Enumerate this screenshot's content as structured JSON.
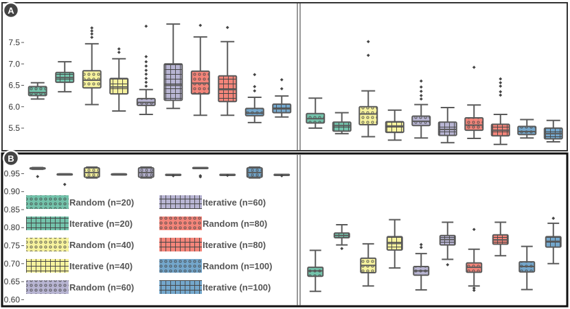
{
  "chart_data": [
    {
      "panel": "A",
      "type": "box",
      "ylim": [
        5.1,
        8.3
      ],
      "yticks": [
        5.5,
        6.0,
        6.5,
        7.0,
        7.5
      ],
      "ytick_labels": [
        "5.5",
        "6.0",
        "6.5",
        "7.0",
        "7.5"
      ],
      "subplots": [
        {
          "name": "left",
          "boxes": [
            {
              "series": "Random (n=20)",
              "whislo": 6.18,
              "q1": 6.26,
              "median": 6.33,
              "q3": 6.47,
              "whishi": 6.56,
              "fliers": []
            },
            {
              "series": "Iterative (n=20)",
              "whislo": 6.35,
              "q1": 6.57,
              "median": 6.68,
              "q3": 6.8,
              "whishi": 7.05,
              "fliers": []
            },
            {
              "series": "Random (n=40)",
              "whislo": 6.05,
              "q1": 6.44,
              "median": 6.62,
              "q3": 6.84,
              "whishi": 7.47,
              "fliers": [
                7.62,
                7.7,
                7.77,
                7.84
              ]
            },
            {
              "series": "Iterative (n=40)",
              "whislo": 5.9,
              "q1": 6.3,
              "median": 6.46,
              "q3": 6.66,
              "whishi": 7.12,
              "fliers": [
                7.27,
                7.35
              ]
            },
            {
              "series": "Random (n=60)",
              "whislo": 5.82,
              "q1": 6.03,
              "median": 6.1,
              "q3": 6.19,
              "whishi": 6.4,
              "fliers": [
                6.48,
                6.57,
                6.66,
                6.76,
                6.85,
                6.95,
                7.05,
                7.17,
                7.88
              ]
            },
            {
              "series": "Iterative (n=60)",
              "whislo": 5.96,
              "q1": 6.15,
              "median": 6.5,
              "q3": 7.0,
              "whishi": 7.93,
              "fliers": []
            },
            {
              "series": "Random (n=80)",
              "whislo": 5.8,
              "q1": 6.3,
              "median": 6.55,
              "q3": 6.83,
              "whishi": 7.63,
              "fliers": [
                7.9
              ]
            },
            {
              "series": "Iterative (n=80)",
              "whislo": 5.8,
              "q1": 6.12,
              "median": 6.4,
              "q3": 6.72,
              "whishi": 7.52,
              "fliers": [
                7.85
              ]
            },
            {
              "series": "Random (n=100)",
              "whislo": 5.63,
              "q1": 5.79,
              "median": 5.85,
              "q3": 5.96,
              "whishi": 6.22,
              "fliers": [
                6.37,
                6.47,
                6.75
              ]
            },
            {
              "series": "Iterative (n=100)",
              "whislo": 5.76,
              "q1": 5.86,
              "median": 5.95,
              "q3": 6.06,
              "whishi": 6.25,
              "fliers": [
                6.42,
                6.63
              ]
            }
          ]
        },
        {
          "name": "right",
          "boxes": [
            {
              "series": "Random (n=20)",
              "whislo": 5.5,
              "q1": 5.62,
              "median": 5.72,
              "q3": 5.84,
              "whishi": 6.2,
              "fliers": []
            },
            {
              "series": "Iterative (n=20)",
              "whislo": 5.37,
              "q1": 5.43,
              "median": 5.56,
              "q3": 5.64,
              "whishi": 5.86,
              "fliers": []
            },
            {
              "series": "Random (n=40)",
              "whislo": 5.3,
              "q1": 5.58,
              "median": 5.83,
              "q3": 6.0,
              "whishi": 6.37,
              "fliers": [
                7.2,
                7.52
              ]
            },
            {
              "series": "Iterative (n=40)",
              "whislo": 5.22,
              "q1": 5.4,
              "median": 5.55,
              "q3": 5.65,
              "whishi": 5.92,
              "fliers": []
            },
            {
              "series": "Random (n=60)",
              "whislo": 5.27,
              "q1": 5.56,
              "median": 5.66,
              "q3": 5.78,
              "whishi": 6.05,
              "fliers": [
                6.18,
                6.26,
                6.36,
                6.46,
                6.6
              ]
            },
            {
              "series": "Iterative (n=60)",
              "whislo": 5.16,
              "q1": 5.33,
              "median": 5.47,
              "q3": 5.64,
              "whishi": 5.98,
              "fliers": []
            },
            {
              "series": "Random (n=80)",
              "whislo": 5.26,
              "q1": 5.45,
              "median": 5.57,
              "q3": 5.74,
              "whishi": 6.04,
              "fliers": [
                6.92
              ]
            },
            {
              "series": "Iterative (n=80)",
              "whislo": 5.12,
              "q1": 5.32,
              "median": 5.45,
              "q3": 5.59,
              "whishi": 5.82,
              "fliers": [
                6.27,
                6.35,
                6.48,
                6.56,
                6.65
              ]
            },
            {
              "series": "Random (n=100)",
              "whislo": 5.27,
              "q1": 5.35,
              "median": 5.42,
              "q3": 5.54,
              "whishi": 5.7,
              "fliers": []
            },
            {
              "series": "Iterative (n=100)",
              "whislo": 5.18,
              "q1": 5.25,
              "median": 5.37,
              "q3": 5.5,
              "whishi": 5.68,
              "fliers": []
            }
          ]
        }
      ]
    },
    {
      "panel": "B",
      "type": "box",
      "ylim": [
        0.595,
        0.985
      ],
      "yticks": [
        0.6,
        0.65,
        0.7,
        0.75,
        0.8,
        0.85,
        0.9,
        0.95
      ],
      "ytick_labels": [
        "0.60",
        "0.65",
        "0.70",
        "0.75",
        "0.80",
        "0.85",
        "0.90",
        "0.95"
      ],
      "subplots": [
        {
          "name": "left",
          "boxes": [
            {
              "series": "Random (n=20)",
              "whislo": 0.962,
              "q1": 0.963,
              "median": 0.964,
              "q3": 0.966,
              "whishi": 0.967,
              "fliers": [
                0.942
              ]
            },
            {
              "series": "Iterative (n=20)",
              "whislo": 0.949,
              "q1": 0.949,
              "median": 0.949,
              "q3": 0.949,
              "whishi": 0.949,
              "fliers": [
                0.92
              ]
            },
            {
              "series": "Random (n=40)",
              "whislo": 0.938,
              "q1": 0.94,
              "median": 0.953,
              "q3": 0.966,
              "whishi": 0.968,
              "fliers": []
            },
            {
              "series": "Iterative (n=40)",
              "whislo": 0.949,
              "q1": 0.949,
              "median": 0.949,
              "q3": 0.949,
              "whishi": 0.949,
              "fliers": []
            },
            {
              "series": "Random (n=60)",
              "whislo": 0.938,
              "q1": 0.94,
              "median": 0.953,
              "q3": 0.966,
              "whishi": 0.968,
              "fliers": []
            },
            {
              "series": "Iterative (n=60)",
              "whislo": 0.948,
              "q1": 0.948,
              "median": 0.948,
              "q3": 0.948,
              "whishi": 0.948,
              "fliers": [
                0.944
              ]
            },
            {
              "series": "Random (n=80)",
              "whislo": 0.966,
              "q1": 0.966,
              "median": 0.966,
              "q3": 0.967,
              "whishi": 0.967,
              "fliers": [
                0.944,
                0.941
              ]
            },
            {
              "series": "Iterative (n=80)",
              "whislo": 0.948,
              "q1": 0.948,
              "median": 0.948,
              "q3": 0.948,
              "whishi": 0.948,
              "fliers": [
                0.945
              ]
            },
            {
              "series": "Random (n=100)",
              "whislo": 0.938,
              "q1": 0.94,
              "median": 0.953,
              "q3": 0.966,
              "whishi": 0.968,
              "fliers": []
            },
            {
              "series": "Iterative (n=100)",
              "whislo": 0.948,
              "q1": 0.948,
              "median": 0.948,
              "q3": 0.948,
              "whishi": 0.948,
              "fliers": [
                0.944
              ]
            }
          ]
        },
        {
          "name": "right",
          "boxes": [
            {
              "series": "Random (n=20)",
              "whislo": 0.623,
              "q1": 0.665,
              "median": 0.68,
              "q3": 0.69,
              "whishi": 0.737,
              "fliers": []
            },
            {
              "series": "Iterative (n=20)",
              "whislo": 0.752,
              "q1": 0.772,
              "median": 0.778,
              "q3": 0.785,
              "whishi": 0.808,
              "fliers": [
                0.742
              ]
            },
            {
              "series": "Random (n=40)",
              "whislo": 0.638,
              "q1": 0.675,
              "median": 0.695,
              "q3": 0.715,
              "whishi": 0.755,
              "fliers": []
            },
            {
              "series": "Iterative (n=40)",
              "whislo": 0.688,
              "q1": 0.738,
              "median": 0.756,
              "q3": 0.775,
              "whishi": 0.822,
              "fliers": []
            },
            {
              "series": "Random (n=60)",
              "whislo": 0.627,
              "q1": 0.668,
              "median": 0.68,
              "q3": 0.692,
              "whishi": 0.728,
              "fliers": [
                0.745,
                0.753
              ]
            },
            {
              "series": "Iterative (n=60)",
              "whislo": 0.712,
              "q1": 0.752,
              "median": 0.767,
              "q3": 0.778,
              "whishi": 0.815,
              "fliers": [
                0.697
              ]
            },
            {
              "series": "Random (n=80)",
              "whislo": 0.638,
              "q1": 0.676,
              "median": 0.69,
              "q3": 0.702,
              "whishi": 0.74,
              "fliers": [
                0.795,
                0.632,
                0.626
              ]
            },
            {
              "series": "Iterative (n=80)",
              "whislo": 0.722,
              "q1": 0.754,
              "median": 0.766,
              "q3": 0.78,
              "whishi": 0.815,
              "fliers": []
            },
            {
              "series": "Random (n=100)",
              "whislo": 0.628,
              "q1": 0.677,
              "median": 0.692,
              "q3": 0.705,
              "whishi": 0.748,
              "fliers": []
            },
            {
              "series": "Iterative (n=100)",
              "whislo": 0.7,
              "q1": 0.746,
              "median": 0.762,
              "q3": 0.775,
              "whishi": 0.812,
              "fliers": [
                0.826
              ]
            }
          ]
        }
      ]
    }
  ],
  "panel_labels": [
    "A",
    "B"
  ],
  "series": [
    {
      "name": "Random (n=20)",
      "color": "#73c3ab",
      "pattern": "dots"
    },
    {
      "name": "Iterative (n=20)",
      "color": "#73c3ab",
      "pattern": "grid"
    },
    {
      "name": "Random (n=40)",
      "color": "#f7f39e",
      "pattern": "dots"
    },
    {
      "name": "Iterative (n=40)",
      "color": "#f7f39e",
      "pattern": "grid"
    },
    {
      "name": "Random (n=60)",
      "color": "#b8b5d3",
      "pattern": "dots"
    },
    {
      "name": "Iterative (n=60)",
      "color": "#b8b5d3",
      "pattern": "grid"
    },
    {
      "name": "Random (n=80)",
      "color": "#f4857a",
      "pattern": "dots"
    },
    {
      "name": "Iterative (n=80)",
      "color": "#f4857a",
      "pattern": "grid"
    },
    {
      "name": "Random (n=100)",
      "color": "#74a7cc",
      "pattern": "dots"
    },
    {
      "name": "Iterative (n=100)",
      "color": "#74a7cc",
      "pattern": "grid"
    }
  ],
  "legend": {
    "columns": [
      [
        "Random (n=20)",
        "Iterative (n=20)",
        "Random (n=40)",
        "Iterative (n=40)",
        "Random (n=60)"
      ],
      [
        "Iterative (n=60)",
        "Random (n=80)",
        "Iterative (n=80)",
        "Random (n=100)",
        "Iterative (n=100)"
      ]
    ]
  },
  "style": {
    "box_edge": "#5a5a5a",
    "frame_A": "#333333",
    "frame_B": "#111111",
    "badge_fill": "#444444"
  }
}
